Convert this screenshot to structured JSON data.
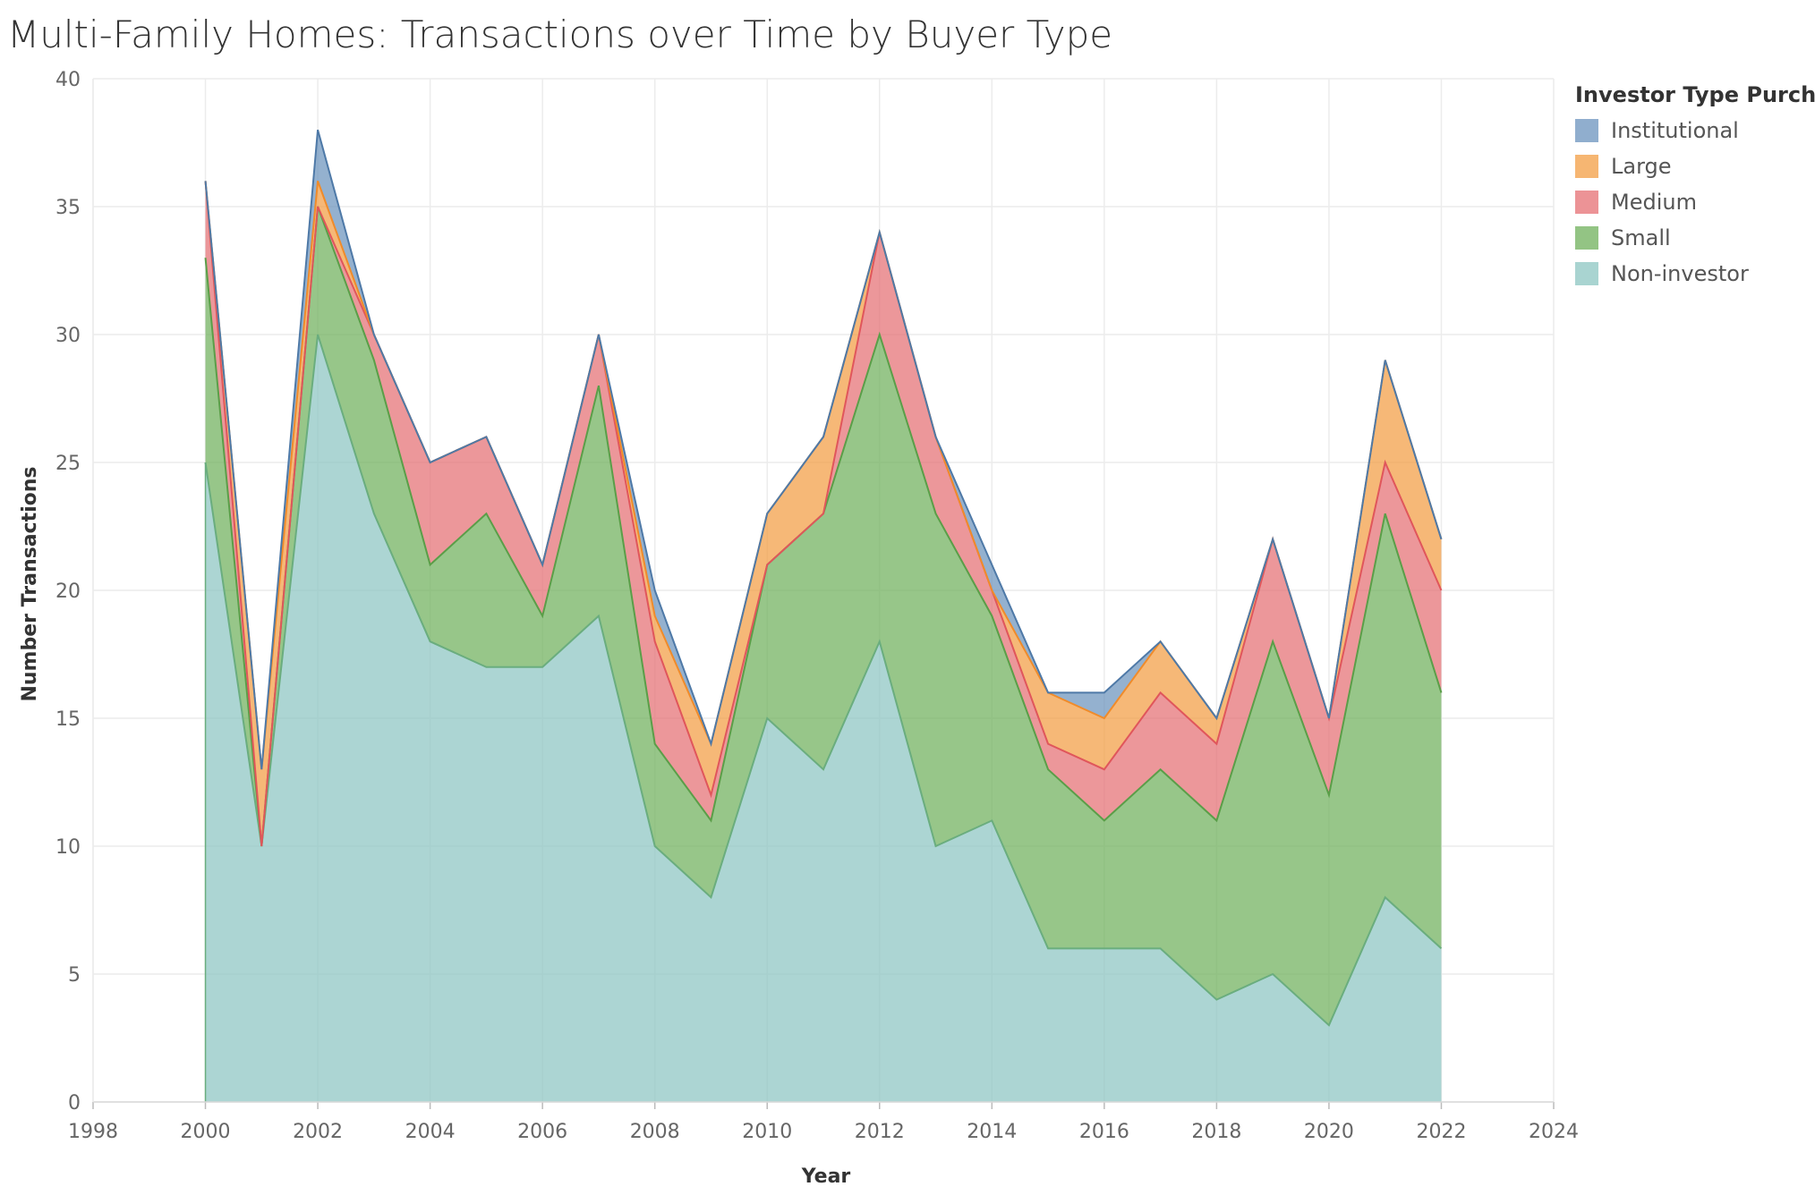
{
  "chart_data": {
    "type": "area",
    "stacked": true,
    "title": "Multi-Family Homes: Transactions over Time by Buyer Type",
    "xlabel": "Year",
    "ylabel": "Number Transactions",
    "xlim": [
      1998,
      2024
    ],
    "ylim": [
      0,
      40
    ],
    "x_ticks": [
      1998,
      2000,
      2002,
      2004,
      2006,
      2008,
      2010,
      2012,
      2014,
      2016,
      2018,
      2020,
      2022,
      2024
    ],
    "y_ticks": [
      0,
      5,
      10,
      15,
      20,
      25,
      30,
      35,
      40
    ],
    "grid": true,
    "legend_title": "Investor Type Purchase",
    "legend_position": "top-right",
    "x": [
      2000,
      2001,
      2002,
      2003,
      2004,
      2005,
      2006,
      2007,
      2008,
      2009,
      2010,
      2011,
      2012,
      2013,
      2014,
      2015,
      2016,
      2017,
      2018,
      2019,
      2020,
      2021,
      2022
    ],
    "series": [
      {
        "name": "Non-investor",
        "color": "#8cc5c2",
        "line_color": "#6aad7e",
        "values": [
          25,
          10,
          30,
          23,
          18,
          17,
          17,
          19,
          10,
          8,
          15,
          13,
          18,
          10,
          11,
          6,
          6,
          6,
          4,
          5,
          3,
          8,
          6
        ]
      },
      {
        "name": "Small",
        "color": "#6fb05b",
        "line_color": "#5a9e48",
        "values": [
          8,
          0,
          5,
          6,
          3,
          6,
          2,
          9,
          4,
          3,
          6,
          10,
          12,
          13,
          8,
          7,
          5,
          7,
          7,
          13,
          9,
          15,
          10
        ]
      },
      {
        "name": "Medium",
        "color": "#e56f73",
        "line_color": "#e0565b",
        "values": [
          3,
          0,
          0,
          1,
          4,
          3,
          2,
          2,
          4,
          1,
          0,
          0,
          4,
          3,
          1,
          1,
          2,
          3,
          3,
          4,
          3,
          2,
          4
        ]
      },
      {
        "name": "Large",
        "color": "#f39d43",
        "line_color": "#f08b2a",
        "values": [
          0,
          3,
          1,
          0,
          0,
          0,
          0,
          0,
          1,
          2,
          2,
          3,
          0,
          0,
          0,
          2,
          2,
          2,
          1,
          0,
          0,
          4,
          2
        ]
      },
      {
        "name": "Institutional",
        "color": "#6b93bd",
        "line_color": "#4e79a7",
        "values": [
          0,
          0,
          2,
          0,
          0,
          0,
          0,
          0,
          1,
          0,
          0,
          0,
          0,
          0,
          1,
          0,
          1,
          0,
          0,
          0,
          0,
          0,
          0
        ]
      }
    ],
    "legend_order": [
      "Institutional",
      "Large",
      "Medium",
      "Small",
      "Non-investor"
    ]
  }
}
